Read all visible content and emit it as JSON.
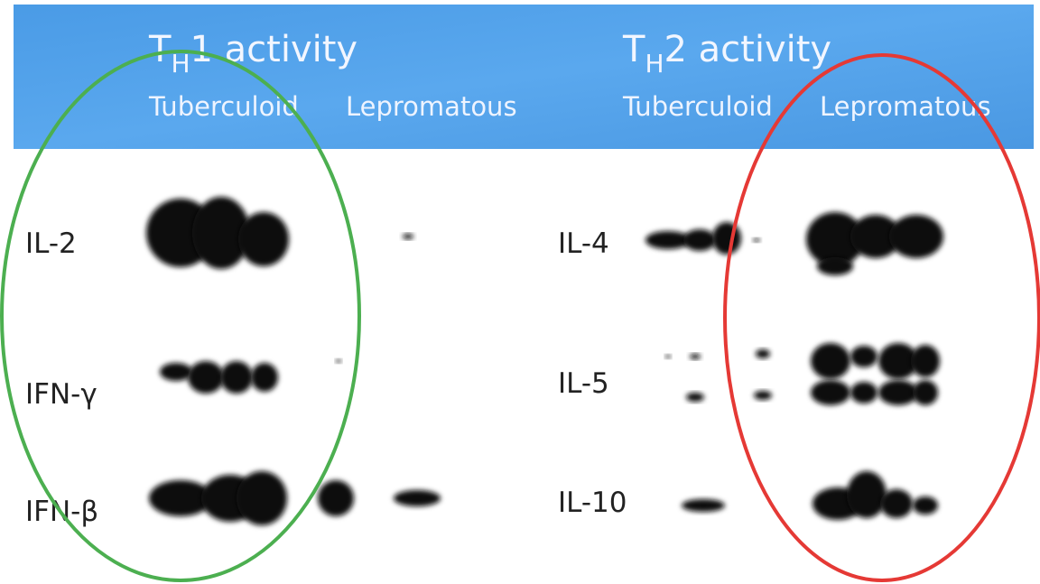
{
  "panels": [
    {
      "title": {
        "base": "T",
        "sub": "H",
        "rest": "1 activity"
      },
      "columns": [
        "Tuberculoid",
        "Lepromatous"
      ],
      "rows": [
        "IL-2",
        "IFN-γ",
        "IFN-β"
      ]
    },
    {
      "title": {
        "base": "T",
        "sub": "H",
        "rest": "2 activity"
      },
      "columns": [
        "Tuberculoid",
        "Lepromatous"
      ],
      "rows": [
        "IL-4",
        "IL-5",
        "IL-10"
      ]
    }
  ]
}
